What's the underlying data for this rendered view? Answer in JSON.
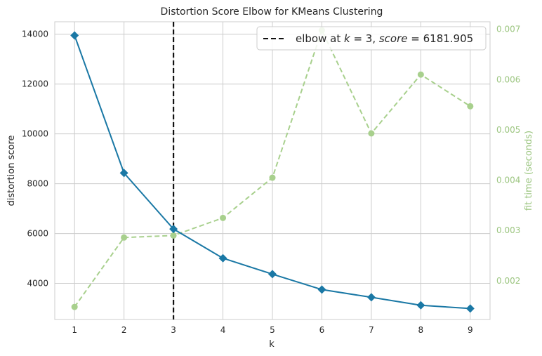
{
  "chart_data": {
    "type": "line",
    "title": "Distortion Score Elbow for KMeans Clustering",
    "xlabel": "k",
    "ylabel": "distortion score",
    "y2label": "fit time (seconds)",
    "x": [
      1,
      2,
      3,
      4,
      5,
      6,
      7,
      8,
      9
    ],
    "xlim": [
      0.6,
      9.4
    ],
    "ylim": [
      2550,
      14500
    ],
    "y2lim": [
      0.00123,
      0.00715
    ],
    "xticks": [
      "1",
      "2",
      "3",
      "4",
      "5",
      "6",
      "7",
      "8",
      "9"
    ],
    "yticks": [
      4000,
      6000,
      8000,
      10000,
      12000,
      14000
    ],
    "yticklabels": [
      "4000",
      "6000",
      "8000",
      "10000",
      "12000",
      "14000"
    ],
    "y2ticks": [
      0.002,
      0.003,
      0.004,
      0.005,
      0.006,
      0.007
    ],
    "y2ticklabels": [
      "0.002",
      "0.003",
      "0.004",
      "0.005",
      "0.006",
      "0.007"
    ],
    "grid": true,
    "series": [
      {
        "axis": "left",
        "values": [
          13950,
          8430,
          6182,
          5010,
          4370,
          3750,
          3440,
          3120,
          2990
        ],
        "color": "#1a78a5",
        "marker": "diamond",
        "style": "solid"
      },
      {
        "axis": "right",
        "values": [
          0.00148,
          0.00286,
          0.0029,
          0.00325,
          0.00405,
          0.00698,
          0.00493,
          0.0061,
          0.00547
        ],
        "color": "#a8d08d",
        "marker": "circle",
        "style": "dashed"
      }
    ],
    "elbow": {
      "k": 3,
      "score": 6181.905
    },
    "legend": {
      "position": "top-right",
      "prefix": "elbow at ",
      "k_symbol": "k",
      "eq1": " = 3, ",
      "score_symbol": "score",
      "eq2": " = 6181.905"
    },
    "right_axis_color": "#9bc57f"
  }
}
